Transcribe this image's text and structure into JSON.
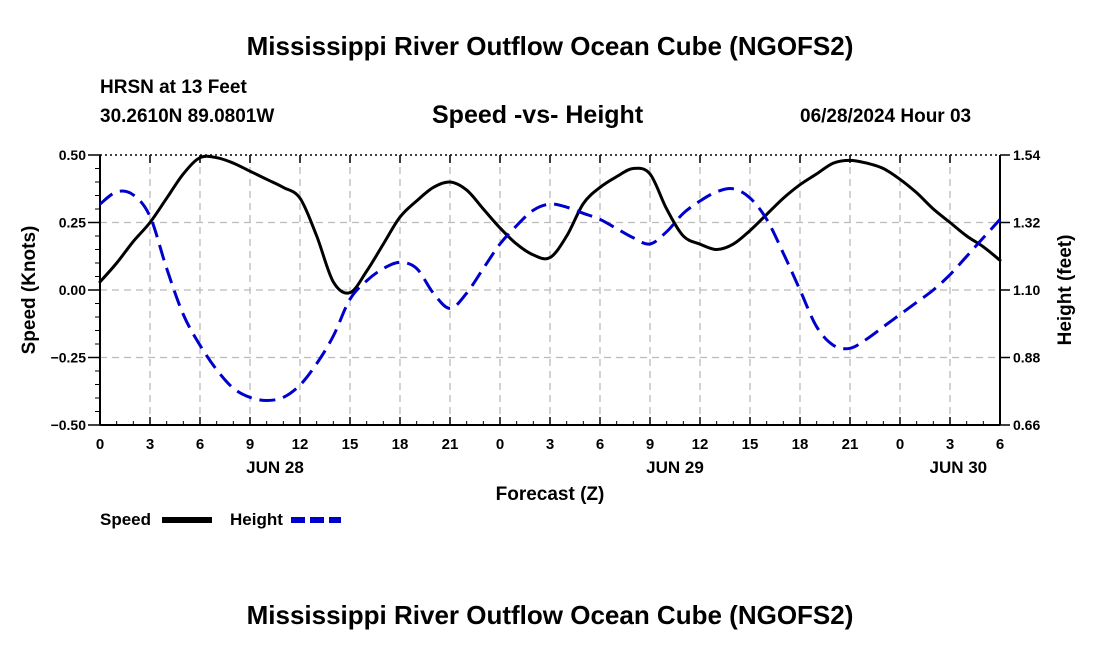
{
  "title": "Mississippi River Outflow Ocean Cube (NGOFS2)",
  "footer_title": "Mississippi River Outflow Ocean Cube (NGOFS2)",
  "station": "HRSN at 13 Feet",
  "coords": "30.2610N  89.0801W",
  "subtitle": "Speed -vs- Height",
  "datetime": "06/28/2024 Hour 03",
  "legend": {
    "speed_label": "Speed",
    "height_label": "Height"
  },
  "colors": {
    "speed": "#000000",
    "height": "#0000cc",
    "grid": "#bbbbbb"
  },
  "chart_data": {
    "type": "line",
    "xlabel": "Forecast (Z)",
    "ylabel": "Speed (Knots)",
    "y2label": "Height (feet)",
    "x_range": [
      0,
      54
    ],
    "ylim": [
      -0.5,
      0.5
    ],
    "y2lim": [
      0.66,
      1.54
    ],
    "x_ticks": [
      0,
      3,
      6,
      9,
      12,
      15,
      18,
      21,
      24,
      27,
      30,
      33,
      36,
      39,
      42,
      45,
      48,
      51,
      54
    ],
    "x_tick_labels": [
      "0",
      "3",
      "6",
      "9",
      "12",
      "15",
      "18",
      "21",
      "0",
      "3",
      "6",
      "9",
      "12",
      "15",
      "18",
      "21",
      "0",
      "3",
      "6"
    ],
    "date_labels": [
      {
        "x": 10.5,
        "label": "JUN 28"
      },
      {
        "x": 34.5,
        "label": "JUN 29"
      },
      {
        "x": 51.5,
        "label": "JUN 30"
      }
    ],
    "y_ticks": [
      0.5,
      0.25,
      0.0,
      -0.25,
      -0.5
    ],
    "y_tick_labels": [
      "0.50",
      "0.25",
      "0.00",
      "−0.25",
      "−0.50"
    ],
    "y2_ticks": [
      1.54,
      1.32,
      1.1,
      0.88,
      0.66
    ],
    "y2_tick_labels": [
      "1.54",
      "1.32",
      "1.10",
      "0.88",
      "0.66"
    ],
    "series": [
      {
        "name": "Speed",
        "axis": "left",
        "style": "solid",
        "x": [
          0,
          1,
          2,
          3,
          4,
          5,
          6,
          7,
          8,
          9,
          10,
          11,
          12,
          13,
          14,
          15,
          16,
          17,
          18,
          19,
          20,
          21,
          22,
          23,
          24,
          25,
          26,
          27,
          28,
          29,
          30,
          31,
          32,
          33,
          34,
          35,
          36,
          37,
          38,
          39,
          40,
          41,
          42,
          43,
          44,
          45,
          46,
          47,
          48,
          49,
          50,
          51,
          52,
          53,
          54
        ],
        "values": [
          0.03,
          0.1,
          0.18,
          0.25,
          0.34,
          0.43,
          0.49,
          0.49,
          0.47,
          0.44,
          0.41,
          0.38,
          0.34,
          0.2,
          0.03,
          -0.01,
          0.07,
          0.17,
          0.27,
          0.33,
          0.38,
          0.4,
          0.37,
          0.3,
          0.23,
          0.17,
          0.13,
          0.12,
          0.2,
          0.32,
          0.38,
          0.42,
          0.45,
          0.43,
          0.3,
          0.2,
          0.17,
          0.15,
          0.17,
          0.22,
          0.28,
          0.34,
          0.39,
          0.43,
          0.47,
          0.48,
          0.47,
          0.45,
          0.41,
          0.36,
          0.3,
          0.25,
          0.2,
          0.16,
          0.11
        ]
      },
      {
        "name": "Height",
        "axis": "right",
        "style": "dashed",
        "x": [
          0,
          1,
          2,
          3,
          4,
          5,
          6,
          7,
          8,
          9,
          10,
          11,
          12,
          13,
          14,
          15,
          16,
          17,
          18,
          19,
          20,
          21,
          22,
          23,
          24,
          25,
          26,
          27,
          28,
          29,
          30,
          31,
          32,
          33,
          34,
          35,
          36,
          37,
          38,
          39,
          40,
          41,
          42,
          43,
          44,
          45,
          46,
          47,
          48,
          49,
          50,
          51,
          52,
          53,
          54
        ],
        "values": [
          1.38,
          1.42,
          1.41,
          1.34,
          1.17,
          1.02,
          0.92,
          0.84,
          0.78,
          0.75,
          0.74,
          0.75,
          0.79,
          0.86,
          0.95,
          1.07,
          1.13,
          1.17,
          1.19,
          1.17,
          1.09,
          1.04,
          1.09,
          1.17,
          1.25,
          1.31,
          1.36,
          1.38,
          1.37,
          1.35,
          1.33,
          1.3,
          1.27,
          1.25,
          1.29,
          1.35,
          1.39,
          1.42,
          1.43,
          1.4,
          1.33,
          1.22,
          1.1,
          0.98,
          0.92,
          0.91,
          0.94,
          0.98,
          1.02,
          1.06,
          1.1,
          1.15,
          1.21,
          1.27,
          1.33
        ]
      }
    ]
  }
}
